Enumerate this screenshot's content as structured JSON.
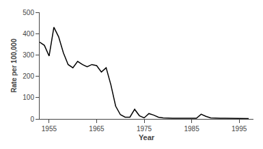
{
  "chart_data": {
    "type": "line",
    "x": [
      1953,
      1954,
      1955,
      1956,
      1957,
      1958,
      1959,
      1960,
      1961,
      1962,
      1963,
      1964,
      1965,
      1966,
      1967,
      1968,
      1969,
      1970,
      1971,
      1972,
      1973,
      1974,
      1975,
      1976,
      1977,
      1978,
      1979,
      1980,
      1981,
      1982,
      1983,
      1984,
      1985,
      1986,
      1987,
      1988,
      1989,
      1990,
      1991,
      1992,
      1993,
      1994,
      1995,
      1996,
      1997
    ],
    "values": [
      360,
      345,
      295,
      430,
      385,
      310,
      255,
      240,
      270,
      255,
      245,
      255,
      250,
      220,
      240,
      160,
      60,
      20,
      8,
      8,
      45,
      15,
      5,
      25,
      18,
      8,
      5,
      3,
      3,
      3,
      3,
      3,
      3,
      3,
      22,
      12,
      5,
      3,
      3,
      3,
      3,
      3,
      2,
      2,
      2
    ],
    "color": "#000000",
    "xlim": [
      1953,
      1998
    ],
    "ylim": [
      0,
      500
    ],
    "xticks": [
      1955,
      1965,
      1975,
      1985,
      1995
    ],
    "yticks": [
      0,
      100,
      200,
      300,
      400,
      500
    ],
    "xlabel": "Year",
    "ylabel": "Rate per 100,000",
    "grid": false
  }
}
